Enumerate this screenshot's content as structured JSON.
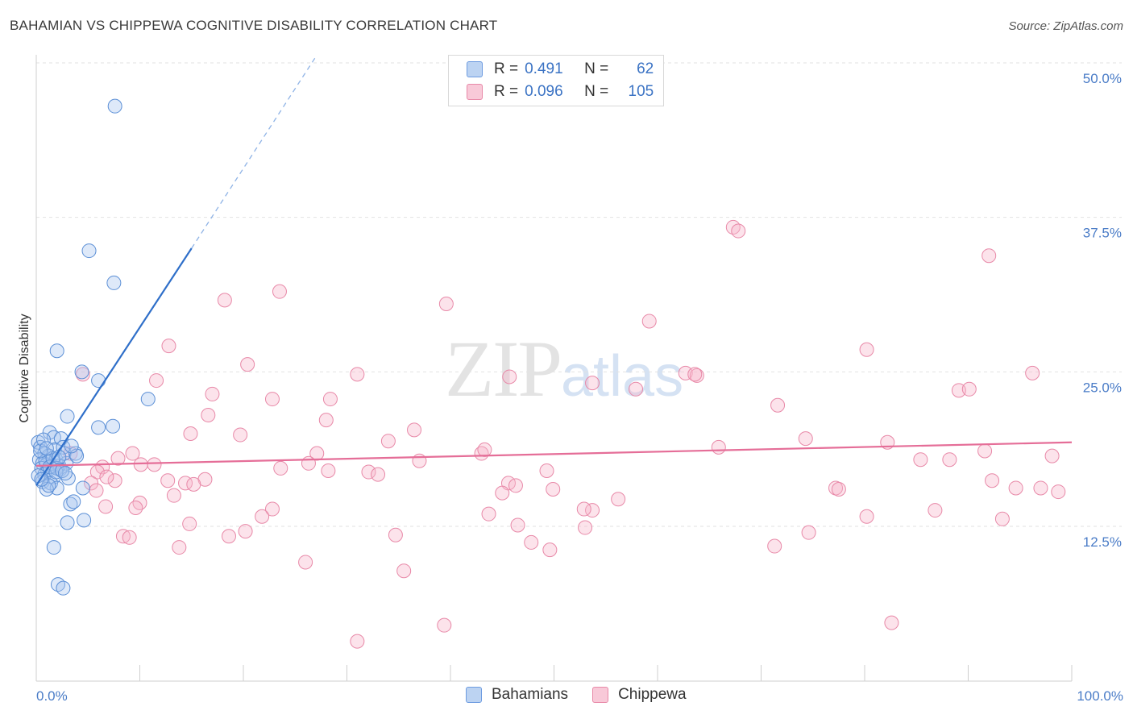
{
  "title": "BAHAMIAN VS CHIPPEWA COGNITIVE DISABILITY CORRELATION CHART",
  "source": "Source: ZipAtlas.com",
  "watermark": {
    "zip": "ZIP",
    "atlas": "atlas"
  },
  "legend": {
    "rows": [
      {
        "r_label": "R =",
        "r_value": "0.491",
        "n_label": "N =",
        "n_value": "62"
      },
      {
        "r_label": "R =",
        "r_value": "0.096",
        "n_label": "N =",
        "n_value": "105"
      }
    ]
  },
  "chart_data": {
    "type": "scatter",
    "ylabel": "Cognitive Disability",
    "xlim": [
      0,
      100
    ],
    "ylim": [
      0,
      52
    ],
    "y_ticks": [
      12.5,
      25.0,
      37.5,
      50.0
    ],
    "y_tick_labels": [
      "12.5%",
      "25.0%",
      "37.5%",
      "50.0%"
    ],
    "x_tick_labels": [
      "0.0%",
      "100.0%"
    ],
    "grid": true,
    "legend_position": "top-center",
    "colors": {
      "bahamians": "#5b8fd6",
      "chippewa": "#e889a8",
      "bahamians_line": "#2f6fc9",
      "chippewa_line": "#e56e98"
    },
    "series": [
      {
        "name": "Bahamians",
        "trend": {
          "x0": 0,
          "y0": 15.8,
          "x1": 15,
          "y1": 35.0,
          "dashed_to_x": 27,
          "dashed_to_y": 50.5
        },
        "points": [
          [
            7.6,
            46.5
          ],
          [
            5.1,
            34.8
          ],
          [
            7.5,
            32.2
          ],
          [
            2.0,
            26.7
          ],
          [
            4.4,
            25.0
          ],
          [
            6.0,
            24.3
          ],
          [
            10.8,
            22.8
          ],
          [
            3.0,
            21.4
          ],
          [
            6.0,
            20.5
          ],
          [
            7.4,
            20.6
          ],
          [
            1.3,
            20.1
          ],
          [
            1.7,
            19.7
          ],
          [
            2.4,
            19.6
          ],
          [
            0.2,
            19.3
          ],
          [
            0.4,
            18.9
          ],
          [
            1.8,
            18.7
          ],
          [
            2.6,
            18.9
          ],
          [
            0.8,
            18.4
          ],
          [
            1.2,
            18.2
          ],
          [
            1.9,
            17.9
          ],
          [
            0.3,
            17.9
          ],
          [
            0.6,
            17.6
          ],
          [
            1.0,
            17.5
          ],
          [
            1.5,
            17.4
          ],
          [
            2.2,
            17.4
          ],
          [
            2.9,
            17.6
          ],
          [
            0.5,
            17.2
          ],
          [
            1.1,
            17.0
          ],
          [
            0.8,
            16.7
          ],
          [
            2.3,
            17.1
          ],
          [
            1.7,
            16.5
          ],
          [
            3.1,
            16.4
          ],
          [
            0.6,
            16.1
          ],
          [
            1.4,
            16.0
          ],
          [
            2.0,
            15.6
          ],
          [
            1.0,
            15.5
          ],
          [
            4.5,
            15.6
          ],
          [
            3.3,
            14.3
          ],
          [
            3.6,
            14.5
          ],
          [
            3.0,
            12.8
          ],
          [
            4.6,
            13.0
          ],
          [
            1.7,
            10.8
          ],
          [
            2.1,
            7.8
          ],
          [
            2.6,
            7.5
          ],
          [
            0.9,
            17.8
          ],
          [
            1.3,
            17.3
          ],
          [
            2.7,
            18.4
          ],
          [
            3.8,
            18.4
          ],
          [
            3.9,
            18.2
          ],
          [
            0.4,
            18.6
          ],
          [
            1.6,
            18.0
          ],
          [
            2.0,
            17.2
          ],
          [
            0.7,
            19.5
          ],
          [
            1.9,
            16.9
          ],
          [
            2.5,
            17.0
          ],
          [
            0.2,
            16.6
          ],
          [
            1.2,
            15.8
          ],
          [
            3.4,
            19.0
          ],
          [
            2.2,
            18.1
          ],
          [
            1.0,
            18.8
          ],
          [
            0.5,
            16.3
          ],
          [
            2.8,
            16.8
          ]
        ]
      },
      {
        "name": "Chippewa",
        "trend": {
          "x0": 0,
          "y0": 17.4,
          "x1": 100,
          "y1": 19.3
        },
        "points": [
          [
            67.3,
            36.7
          ],
          [
            67.8,
            36.4
          ],
          [
            92.0,
            34.4
          ],
          [
            23.5,
            31.5
          ],
          [
            18.2,
            30.8
          ],
          [
            39.6,
            30.5
          ],
          [
            59.2,
            29.1
          ],
          [
            12.8,
            27.1
          ],
          [
            80.2,
            26.8
          ],
          [
            20.4,
            25.6
          ],
          [
            4.5,
            24.8
          ],
          [
            31.0,
            24.8
          ],
          [
            45.7,
            24.6
          ],
          [
            53.7,
            24.1
          ],
          [
            62.7,
            24.9
          ],
          [
            63.8,
            24.7
          ],
          [
            96.2,
            24.9
          ],
          [
            11.6,
            24.3
          ],
          [
            57.9,
            23.6
          ],
          [
            89.1,
            23.5
          ],
          [
            90.1,
            23.6
          ],
          [
            17.0,
            23.2
          ],
          [
            22.8,
            22.8
          ],
          [
            28.4,
            22.8
          ],
          [
            71.6,
            22.3
          ],
          [
            16.6,
            21.5
          ],
          [
            28.0,
            21.1
          ],
          [
            14.9,
            20.0
          ],
          [
            36.5,
            20.3
          ],
          [
            19.7,
            19.9
          ],
          [
            34.0,
            19.4
          ],
          [
            74.3,
            19.6
          ],
          [
            91.6,
            18.6
          ],
          [
            82.2,
            19.3
          ],
          [
            65.9,
            18.9
          ],
          [
            9.3,
            18.4
          ],
          [
            27.1,
            18.4
          ],
          [
            43.0,
            18.4
          ],
          [
            7.9,
            18.0
          ],
          [
            3.3,
            18.4
          ],
          [
            37.0,
            17.8
          ],
          [
            85.4,
            17.9
          ],
          [
            88.2,
            17.9
          ],
          [
            98.1,
            18.2
          ],
          [
            10.1,
            17.5
          ],
          [
            11.4,
            17.5
          ],
          [
            6.4,
            17.3
          ],
          [
            23.6,
            17.2
          ],
          [
            28.2,
            17.0
          ],
          [
            49.3,
            17.0
          ],
          [
            5.9,
            16.9
          ],
          [
            32.1,
            16.9
          ],
          [
            33.0,
            16.7
          ],
          [
            16.3,
            16.3
          ],
          [
            7.6,
            16.2
          ],
          [
            12.7,
            16.2
          ],
          [
            14.4,
            16.0
          ],
          [
            15.2,
            15.9
          ],
          [
            45.6,
            16.0
          ],
          [
            46.3,
            15.8
          ],
          [
            92.3,
            16.2
          ],
          [
            5.3,
            16.0
          ],
          [
            97.0,
            15.6
          ],
          [
            98.7,
            15.3
          ],
          [
            94.6,
            15.6
          ],
          [
            49.9,
            15.5
          ],
          [
            45.0,
            15.2
          ],
          [
            5.8,
            15.4
          ],
          [
            13.3,
            15.0
          ],
          [
            56.2,
            14.7
          ],
          [
            77.2,
            15.6
          ],
          [
            77.5,
            15.5
          ],
          [
            10.0,
            14.4
          ],
          [
            9.6,
            14.0
          ],
          [
            6.7,
            14.1
          ],
          [
            22.8,
            13.9
          ],
          [
            53.7,
            13.8
          ],
          [
            52.9,
            13.9
          ],
          [
            43.7,
            13.5
          ],
          [
            86.8,
            13.8
          ],
          [
            21.8,
            13.3
          ],
          [
            80.2,
            13.3
          ],
          [
            93.3,
            13.1
          ],
          [
            14.8,
            12.7
          ],
          [
            46.5,
            12.6
          ],
          [
            53.0,
            12.4
          ],
          [
            20.2,
            12.1
          ],
          [
            74.6,
            12.0
          ],
          [
            8.4,
            11.7
          ],
          [
            9.0,
            11.6
          ],
          [
            18.6,
            11.7
          ],
          [
            34.7,
            11.8
          ],
          [
            47.8,
            11.2
          ],
          [
            49.6,
            10.6
          ],
          [
            13.8,
            10.8
          ],
          [
            71.3,
            10.9
          ],
          [
            26.0,
            9.6
          ],
          [
            35.5,
            8.9
          ],
          [
            39.4,
            4.5
          ],
          [
            82.6,
            4.7
          ],
          [
            31.0,
            3.2
          ],
          [
            63.6,
            24.8
          ],
          [
            43.3,
            18.7
          ],
          [
            6.8,
            16.5
          ],
          [
            26.3,
            17.6
          ]
        ]
      }
    ]
  }
}
